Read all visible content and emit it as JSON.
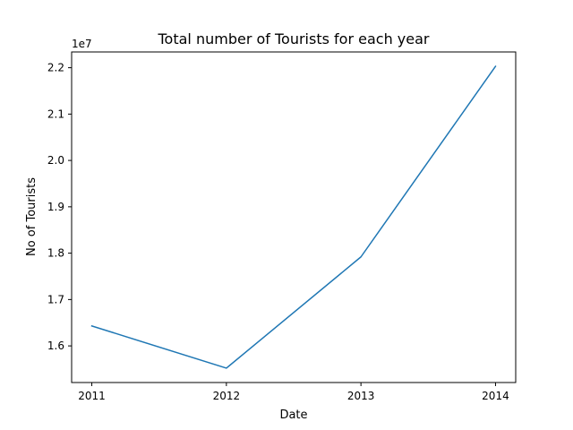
{
  "chart_data": {
    "type": "line",
    "title": "Total number of Tourists for each year",
    "xlabel": "Date",
    "ylabel": "No of Tourists",
    "y_offset_label": "1e7",
    "x": [
      "2011",
      "2012",
      "2013",
      "2014"
    ],
    "series": [
      {
        "values": [
          16430000,
          15520000,
          17920000,
          22030000
        ],
        "color": "#1f77b4"
      }
    ],
    "x_range": [
      2010.85,
      2014.15
    ],
    "y_range": [
      15210000,
      22340000
    ],
    "y_ticks": [
      16000000,
      17000000,
      18000000,
      19000000,
      20000000,
      21000000,
      22000000
    ],
    "y_tick_labels": [
      "1.6",
      "1.7",
      "1.8",
      "1.9",
      "2.0",
      "2.1",
      "2.2"
    ],
    "grid": false,
    "legend": "none"
  }
}
